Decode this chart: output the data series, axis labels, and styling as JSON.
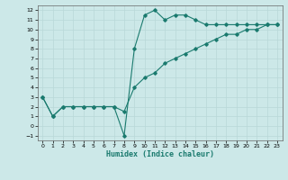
{
  "title": "",
  "xlabel": "Humidex (Indice chaleur)",
  "bg_color": "#cce8e8",
  "line_color": "#1a7a6e",
  "grid_color": "#b8d8d8",
  "xlim": [
    -0.5,
    23.5
  ],
  "ylim": [
    -1.5,
    12.5
  ],
  "xticks": [
    0,
    1,
    2,
    3,
    4,
    5,
    6,
    7,
    8,
    9,
    10,
    11,
    12,
    13,
    14,
    15,
    16,
    17,
    18,
    19,
    20,
    21,
    22,
    23
  ],
  "yticks": [
    -1,
    0,
    1,
    2,
    3,
    4,
    5,
    6,
    7,
    8,
    9,
    10,
    11,
    12
  ],
  "line1_x": [
    0,
    1,
    2,
    3,
    4,
    5,
    6,
    7,
    8,
    9,
    10,
    11,
    12,
    13,
    14,
    15,
    16,
    17,
    18,
    19,
    20,
    21,
    22,
    23
  ],
  "line1_y": [
    3,
    1,
    2,
    2,
    2,
    2,
    2,
    2,
    -1,
    8,
    11.5,
    12,
    11,
    11.5,
    11.5,
    11,
    10.5,
    10.5,
    10.5,
    10.5,
    10.5,
    10.5,
    10.5,
    10.5
  ],
  "line2_x": [
    0,
    1,
    2,
    3,
    4,
    5,
    6,
    7,
    8,
    9,
    10,
    11,
    12,
    13,
    14,
    15,
    16,
    17,
    18,
    19,
    20,
    21,
    22,
    23
  ],
  "line2_y": [
    3,
    1,
    2,
    2,
    2,
    2,
    2,
    2,
    1.5,
    4,
    5,
    5.5,
    6.5,
    7,
    7.5,
    8,
    8.5,
    9,
    9.5,
    9.5,
    10,
    10,
    10.5,
    10.5
  ]
}
